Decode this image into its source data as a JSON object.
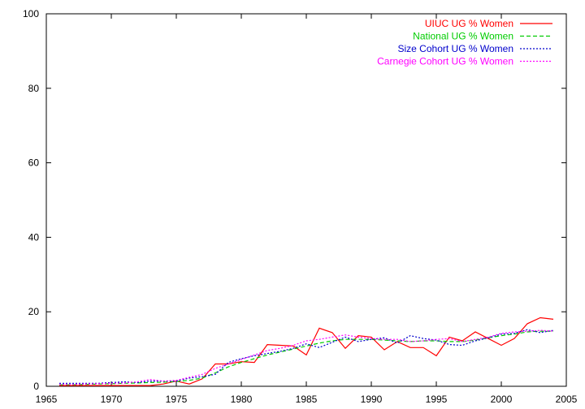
{
  "chart_data": {
    "type": "line",
    "title": "",
    "xlabel": "",
    "ylabel": "",
    "xlim": [
      1965,
      2005
    ],
    "ylim": [
      0,
      100
    ],
    "x_ticks": [
      1965,
      1970,
      1975,
      1980,
      1985,
      1990,
      1995,
      2000,
      2005
    ],
    "y_ticks": [
      0,
      20,
      40,
      60,
      80,
      100
    ],
    "x_tick_labels": [
      "1965",
      "1970",
      "1975",
      "1980",
      "1985",
      "1990",
      "1995",
      "2000",
      "2005"
    ],
    "y_tick_labels": [
      "0",
      "20",
      "40",
      "60",
      "80",
      "100"
    ],
    "grid": false,
    "legend_position": "top-right",
    "x": [
      1966,
      1967,
      1968,
      1969,
      1970,
      1971,
      1972,
      1973,
      1974,
      1975,
      1976,
      1977,
      1978,
      1979,
      1980,
      1981,
      1982,
      1983,
      1984,
      1985,
      1986,
      1987,
      1988,
      1989,
      1990,
      1991,
      1992,
      1993,
      1994,
      1995,
      1996,
      1997,
      1998,
      1999,
      2000,
      2001,
      2002,
      2003,
      2004
    ],
    "series": [
      {
        "name": "UIUC UG % Women",
        "color": "#ff0000",
        "dash": "solid",
        "values": [
          0.2,
          0.2,
          0.2,
          0.2,
          0.2,
          0.2,
          0.2,
          0.2,
          0.6,
          1.4,
          0.6,
          2.0,
          6.0,
          6.0,
          6.6,
          6.4,
          11.2,
          11.0,
          10.8,
          8.4,
          15.6,
          14.4,
          10.2,
          13.6,
          13.2,
          9.8,
          12.0,
          10.4,
          10.4,
          8.2,
          13.2,
          12.2,
          14.6,
          12.8,
          11.0,
          12.8,
          16.8,
          18.4,
          18.0
        ]
      },
      {
        "name": "National UG % Women",
        "color": "#00cc00",
        "dash": "dashed",
        "values": [
          0.4,
          0.4,
          0.5,
          0.6,
          0.7,
          0.8,
          0.9,
          1.0,
          1.1,
          1.3,
          1.6,
          2.2,
          3.6,
          5.2,
          6.4,
          7.4,
          8.4,
          9.2,
          10.0,
          10.8,
          11.6,
          12.2,
          12.6,
          12.6,
          12.6,
          12.4,
          12.2,
          12.0,
          12.2,
          12.2,
          12.0,
          12.0,
          12.4,
          13.0,
          13.6,
          14.0,
          14.6,
          14.8,
          14.8
        ]
      },
      {
        "name": "Size Cohort UG % Women",
        "color": "#0000cc",
        "dash": "dotted",
        "values": [
          0.8,
          0.8,
          0.8,
          0.8,
          1.0,
          1.2,
          1.0,
          1.4,
          1.4,
          1.4,
          2.2,
          2.6,
          3.2,
          6.4,
          7.4,
          8.2,
          8.8,
          9.4,
          10.2,
          11.4,
          10.4,
          11.8,
          13.2,
          12.0,
          12.6,
          13.0,
          11.6,
          13.6,
          12.8,
          12.4,
          11.2,
          11.0,
          12.2,
          13.0,
          14.0,
          14.2,
          15.2,
          14.4,
          15.0
        ]
      },
      {
        "name": "Carnegie Cohort UG % Women",
        "color": "#ff00ff",
        "dash": "dotted",
        "values": [
          0.5,
          0.5,
          0.6,
          0.7,
          0.8,
          0.9,
          1.2,
          1.8,
          1.4,
          1.6,
          2.4,
          3.2,
          4.8,
          6.0,
          7.2,
          8.4,
          9.6,
          10.2,
          11.0,
          12.2,
          12.6,
          13.2,
          13.8,
          13.2,
          12.8,
          12.6,
          12.6,
          12.0,
          12.2,
          12.6,
          12.8,
          12.0,
          12.6,
          13.2,
          14.2,
          14.6,
          14.8,
          15.0,
          14.8
        ]
      }
    ]
  }
}
